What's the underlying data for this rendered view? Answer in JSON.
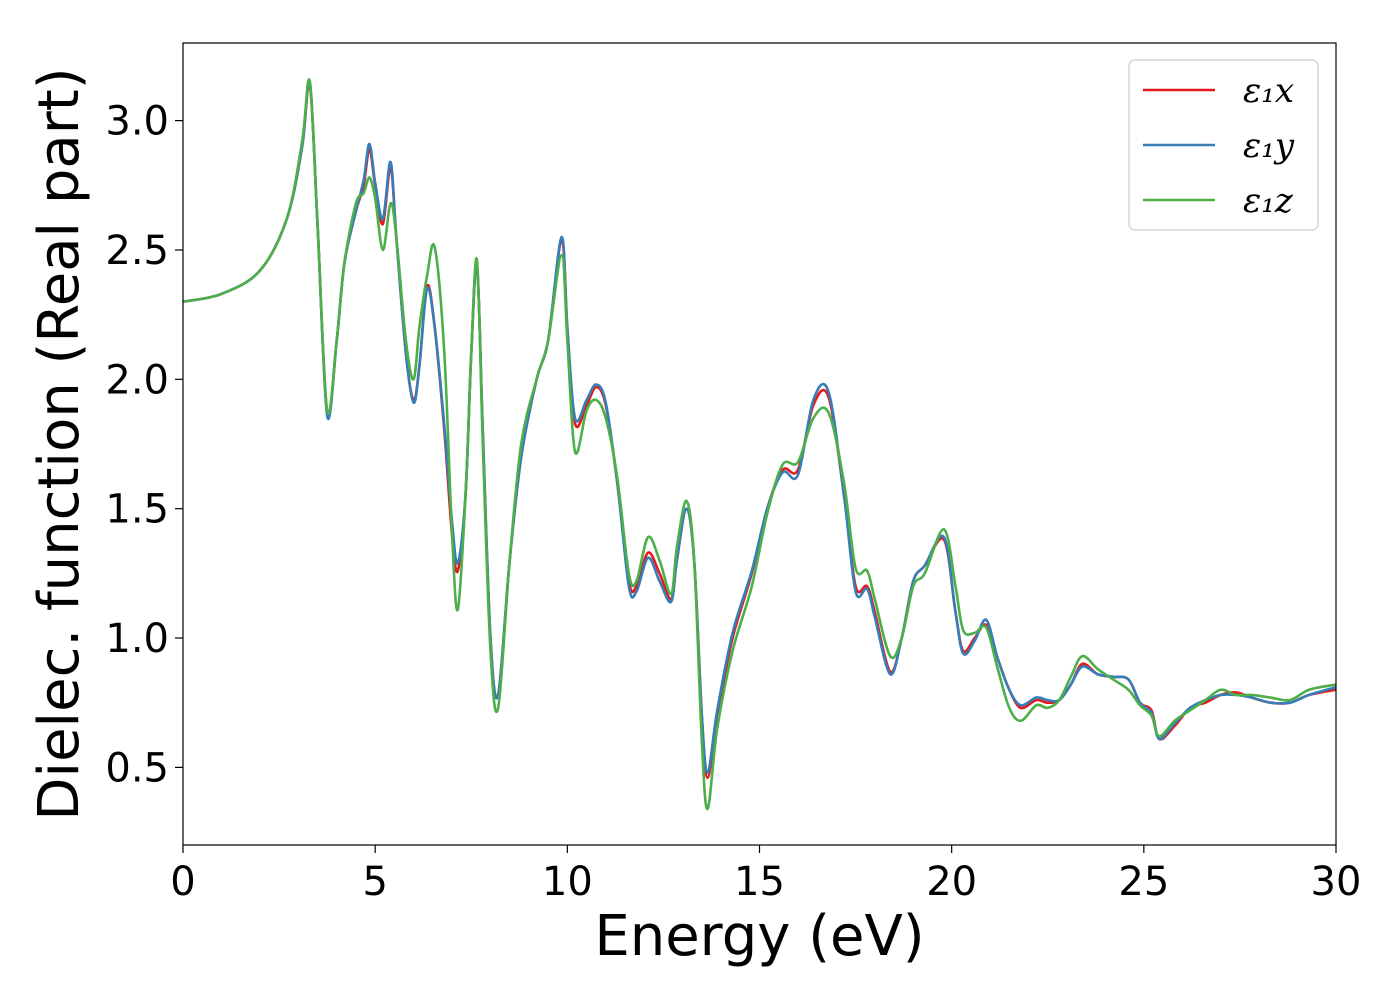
{
  "chart_data": {
    "type": "line",
    "title": "",
    "xlabel": "Energy (eV)",
    "ylabel": "Dielec. function (Real part)",
    "xlim": [
      0,
      30
    ],
    "ylim": [
      0.2,
      3.3
    ],
    "xticks": [
      0,
      5,
      10,
      15,
      20,
      25,
      30
    ],
    "xtick_labels": [
      "0",
      "5",
      "10",
      "15",
      "20",
      "25",
      "30"
    ],
    "yticks": [
      0.5,
      1.0,
      1.5,
      2.0,
      2.5,
      3.0
    ],
    "ytick_labels": [
      "0.5",
      "1.0",
      "1.5",
      "2.0",
      "2.5",
      "3.0"
    ],
    "grid": false,
    "legend_position": "top-right",
    "series": [
      {
        "name": "ε₁x",
        "color": "#e41a1c",
        "points": [
          [
            0,
            2.3
          ],
          [
            1.0,
            2.33
          ],
          [
            2.0,
            2.42
          ],
          [
            2.7,
            2.62
          ],
          [
            3.1,
            2.9
          ],
          [
            3.3,
            3.14
          ],
          [
            3.5,
            2.6
          ],
          [
            3.75,
            1.87
          ],
          [
            4.0,
            2.15
          ],
          [
            4.2,
            2.45
          ],
          [
            4.5,
            2.65
          ],
          [
            4.7,
            2.75
          ],
          [
            4.85,
            2.89
          ],
          [
            5.0,
            2.75
          ],
          [
            5.2,
            2.6
          ],
          [
            5.4,
            2.82
          ],
          [
            5.55,
            2.55
          ],
          [
            5.8,
            2.1
          ],
          [
            6.0,
            1.92
          ],
          [
            6.15,
            2.05
          ],
          [
            6.35,
            2.36
          ],
          [
            6.55,
            2.2
          ],
          [
            6.8,
            1.8
          ],
          [
            7.0,
            1.4
          ],
          [
            7.15,
            1.26
          ],
          [
            7.35,
            1.55
          ],
          [
            7.5,
            2.1
          ],
          [
            7.65,
            2.44
          ],
          [
            7.8,
            1.8
          ],
          [
            8.0,
            1.0
          ],
          [
            8.2,
            0.78
          ],
          [
            8.5,
            1.3
          ],
          [
            8.8,
            1.7
          ],
          [
            9.2,
            2.0
          ],
          [
            9.5,
            2.15
          ],
          [
            9.85,
            2.54
          ],
          [
            10.0,
            2.2
          ],
          [
            10.2,
            1.83
          ],
          [
            10.5,
            1.9
          ],
          [
            10.75,
            1.97
          ],
          [
            11.0,
            1.9
          ],
          [
            11.3,
            1.6
          ],
          [
            11.6,
            1.22
          ],
          [
            11.8,
            1.2
          ],
          [
            12.1,
            1.33
          ],
          [
            12.4,
            1.25
          ],
          [
            12.7,
            1.15
          ],
          [
            12.85,
            1.3
          ],
          [
            13.1,
            1.5
          ],
          [
            13.3,
            1.3
          ],
          [
            13.5,
            0.7
          ],
          [
            13.65,
            0.46
          ],
          [
            13.9,
            0.7
          ],
          [
            14.3,
            1.0
          ],
          [
            14.8,
            1.25
          ],
          [
            15.2,
            1.5
          ],
          [
            15.6,
            1.65
          ],
          [
            16.0,
            1.65
          ],
          [
            16.4,
            1.9
          ],
          [
            16.8,
            1.93
          ],
          [
            17.2,
            1.55
          ],
          [
            17.5,
            1.2
          ],
          [
            17.8,
            1.2
          ],
          [
            18.0,
            1.1
          ],
          [
            18.4,
            0.87
          ],
          [
            18.7,
            1.0
          ],
          [
            19.0,
            1.22
          ],
          [
            19.3,
            1.28
          ],
          [
            19.8,
            1.38
          ],
          [
            20.1,
            1.1
          ],
          [
            20.3,
            0.95
          ],
          [
            20.6,
            1.0
          ],
          [
            20.9,
            1.05
          ],
          [
            21.2,
            0.92
          ],
          [
            21.5,
            0.8
          ],
          [
            21.8,
            0.73
          ],
          [
            22.2,
            0.76
          ],
          [
            22.5,
            0.75
          ],
          [
            22.8,
            0.76
          ],
          [
            23.1,
            0.82
          ],
          [
            23.4,
            0.9
          ],
          [
            23.8,
            0.86
          ],
          [
            24.2,
            0.85
          ],
          [
            24.6,
            0.84
          ],
          [
            24.9,
            0.75
          ],
          [
            25.2,
            0.72
          ],
          [
            25.4,
            0.61
          ],
          [
            25.8,
            0.66
          ],
          [
            26.2,
            0.73
          ],
          [
            26.6,
            0.75
          ],
          [
            27.0,
            0.78
          ],
          [
            27.4,
            0.79
          ],
          [
            27.8,
            0.77
          ],
          [
            28.3,
            0.75
          ],
          [
            28.8,
            0.75
          ],
          [
            29.3,
            0.78
          ],
          [
            30.0,
            0.8
          ]
        ]
      },
      {
        "name": "ε₁y",
        "color": "#377eb8",
        "points": [
          [
            0,
            2.3
          ],
          [
            1.0,
            2.33
          ],
          [
            2.0,
            2.42
          ],
          [
            2.7,
            2.62
          ],
          [
            3.1,
            2.9
          ],
          [
            3.3,
            3.15
          ],
          [
            3.5,
            2.6
          ],
          [
            3.75,
            1.86
          ],
          [
            4.0,
            2.15
          ],
          [
            4.2,
            2.45
          ],
          [
            4.5,
            2.65
          ],
          [
            4.7,
            2.77
          ],
          [
            4.85,
            2.91
          ],
          [
            5.0,
            2.76
          ],
          [
            5.2,
            2.62
          ],
          [
            5.4,
            2.84
          ],
          [
            5.55,
            2.55
          ],
          [
            5.8,
            2.1
          ],
          [
            6.0,
            1.91
          ],
          [
            6.15,
            2.05
          ],
          [
            6.35,
            2.35
          ],
          [
            6.55,
            2.2
          ],
          [
            6.8,
            1.82
          ],
          [
            7.0,
            1.45
          ],
          [
            7.15,
            1.29
          ],
          [
            7.35,
            1.55
          ],
          [
            7.5,
            2.1
          ],
          [
            7.65,
            2.44
          ],
          [
            7.8,
            1.8
          ],
          [
            8.0,
            1.0
          ],
          [
            8.2,
            0.78
          ],
          [
            8.5,
            1.3
          ],
          [
            8.8,
            1.7
          ],
          [
            9.2,
            2.0
          ],
          [
            9.5,
            2.15
          ],
          [
            9.85,
            2.55
          ],
          [
            10.0,
            2.2
          ],
          [
            10.2,
            1.85
          ],
          [
            10.5,
            1.92
          ],
          [
            10.75,
            1.98
          ],
          [
            11.0,
            1.91
          ],
          [
            11.3,
            1.6
          ],
          [
            11.6,
            1.2
          ],
          [
            11.8,
            1.18
          ],
          [
            12.1,
            1.31
          ],
          [
            12.4,
            1.22
          ],
          [
            12.7,
            1.14
          ],
          [
            12.85,
            1.3
          ],
          [
            13.1,
            1.5
          ],
          [
            13.3,
            1.3
          ],
          [
            13.5,
            0.7
          ],
          [
            13.65,
            0.48
          ],
          [
            13.9,
            0.72
          ],
          [
            14.3,
            1.02
          ],
          [
            14.8,
            1.26
          ],
          [
            15.2,
            1.5
          ],
          [
            15.6,
            1.64
          ],
          [
            16.0,
            1.63
          ],
          [
            16.4,
            1.92
          ],
          [
            16.8,
            1.95
          ],
          [
            17.2,
            1.55
          ],
          [
            17.5,
            1.18
          ],
          [
            17.8,
            1.19
          ],
          [
            18.0,
            1.08
          ],
          [
            18.4,
            0.86
          ],
          [
            18.7,
            1.0
          ],
          [
            19.0,
            1.22
          ],
          [
            19.3,
            1.28
          ],
          [
            19.8,
            1.39
          ],
          [
            20.1,
            1.1
          ],
          [
            20.3,
            0.94
          ],
          [
            20.6,
            0.99
          ],
          [
            20.9,
            1.07
          ],
          [
            21.2,
            0.92
          ],
          [
            21.5,
            0.8
          ],
          [
            21.8,
            0.74
          ],
          [
            22.2,
            0.77
          ],
          [
            22.5,
            0.76
          ],
          [
            22.8,
            0.76
          ],
          [
            23.1,
            0.82
          ],
          [
            23.4,
            0.89
          ],
          [
            23.8,
            0.86
          ],
          [
            24.2,
            0.85
          ],
          [
            24.6,
            0.84
          ],
          [
            24.9,
            0.75
          ],
          [
            25.2,
            0.71
          ],
          [
            25.4,
            0.61
          ],
          [
            25.8,
            0.67
          ],
          [
            26.2,
            0.73
          ],
          [
            26.6,
            0.76
          ],
          [
            27.0,
            0.78
          ],
          [
            27.4,
            0.78
          ],
          [
            27.8,
            0.77
          ],
          [
            28.3,
            0.75
          ],
          [
            28.8,
            0.75
          ],
          [
            29.3,
            0.78
          ],
          [
            30.0,
            0.81
          ]
        ]
      },
      {
        "name": "ε₁z",
        "color": "#4daf4a",
        "points": [
          [
            0,
            2.3
          ],
          [
            1.0,
            2.33
          ],
          [
            2.0,
            2.42
          ],
          [
            2.7,
            2.62
          ],
          [
            3.1,
            2.92
          ],
          [
            3.3,
            3.15
          ],
          [
            3.5,
            2.6
          ],
          [
            3.75,
            1.88
          ],
          [
            4.0,
            2.15
          ],
          [
            4.2,
            2.45
          ],
          [
            4.5,
            2.68
          ],
          [
            4.7,
            2.72
          ],
          [
            4.85,
            2.78
          ],
          [
            5.0,
            2.7
          ],
          [
            5.2,
            2.5
          ],
          [
            5.4,
            2.68
          ],
          [
            5.55,
            2.55
          ],
          [
            5.8,
            2.15
          ],
          [
            6.0,
            2.0
          ],
          [
            6.15,
            2.2
          ],
          [
            6.35,
            2.4
          ],
          [
            6.55,
            2.51
          ],
          [
            6.8,
            2.1
          ],
          [
            7.0,
            1.4
          ],
          [
            7.15,
            1.11
          ],
          [
            7.35,
            1.55
          ],
          [
            7.5,
            2.1
          ],
          [
            7.65,
            2.46
          ],
          [
            7.8,
            1.75
          ],
          [
            8.0,
            0.95
          ],
          [
            8.2,
            0.73
          ],
          [
            8.5,
            1.3
          ],
          [
            8.8,
            1.75
          ],
          [
            9.2,
            2.0
          ],
          [
            9.5,
            2.15
          ],
          [
            9.85,
            2.48
          ],
          [
            10.0,
            2.15
          ],
          [
            10.2,
            1.72
          ],
          [
            10.5,
            1.88
          ],
          [
            10.75,
            1.92
          ],
          [
            11.0,
            1.85
          ],
          [
            11.3,
            1.62
          ],
          [
            11.6,
            1.25
          ],
          [
            11.8,
            1.22
          ],
          [
            12.1,
            1.39
          ],
          [
            12.4,
            1.3
          ],
          [
            12.7,
            1.17
          ],
          [
            12.85,
            1.35
          ],
          [
            13.1,
            1.53
          ],
          [
            13.3,
            1.3
          ],
          [
            13.5,
            0.6
          ],
          [
            13.65,
            0.34
          ],
          [
            13.9,
            0.65
          ],
          [
            14.3,
            0.95
          ],
          [
            14.8,
            1.2
          ],
          [
            15.2,
            1.48
          ],
          [
            15.6,
            1.67
          ],
          [
            16.0,
            1.68
          ],
          [
            16.4,
            1.85
          ],
          [
            16.8,
            1.87
          ],
          [
            17.2,
            1.6
          ],
          [
            17.5,
            1.27
          ],
          [
            17.8,
            1.26
          ],
          [
            18.0,
            1.15
          ],
          [
            18.4,
            0.93
          ],
          [
            18.7,
            1.0
          ],
          [
            19.0,
            1.2
          ],
          [
            19.3,
            1.25
          ],
          [
            19.8,
            1.42
          ],
          [
            20.1,
            1.2
          ],
          [
            20.3,
            1.03
          ],
          [
            20.6,
            1.02
          ],
          [
            20.9,
            1.04
          ],
          [
            21.2,
            0.88
          ],
          [
            21.5,
            0.73
          ],
          [
            21.8,
            0.68
          ],
          [
            22.2,
            0.74
          ],
          [
            22.5,
            0.73
          ],
          [
            22.8,
            0.76
          ],
          [
            23.1,
            0.85
          ],
          [
            23.4,
            0.93
          ],
          [
            23.8,
            0.88
          ],
          [
            24.2,
            0.84
          ],
          [
            24.6,
            0.8
          ],
          [
            24.9,
            0.74
          ],
          [
            25.2,
            0.7
          ],
          [
            25.4,
            0.62
          ],
          [
            25.8,
            0.68
          ],
          [
            26.2,
            0.72
          ],
          [
            26.6,
            0.76
          ],
          [
            27.0,
            0.8
          ],
          [
            27.4,
            0.78
          ],
          [
            27.8,
            0.78
          ],
          [
            28.3,
            0.77
          ],
          [
            28.8,
            0.76
          ],
          [
            29.3,
            0.8
          ],
          [
            30.0,
            0.82
          ]
        ]
      }
    ]
  }
}
